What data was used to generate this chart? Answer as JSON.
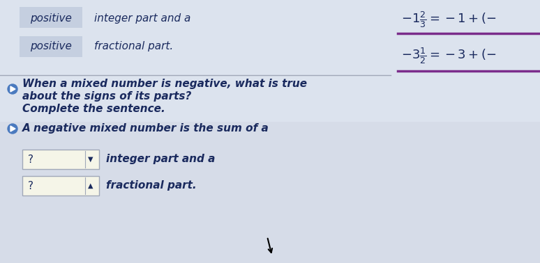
{
  "bg_color": "#d6dce8",
  "panel_bg": "#dce3ee",
  "white_box_color": "#ffffff",
  "light_blue_box_color": "#c5cfe0",
  "dropdown_bg": "#f5f5e8",
  "divider_color": "#a0a8b8",
  "purple_underline": "#7b2d8b",
  "text_color_dark": "#1a2a5e",
  "text_color_medium": "#2a3a6e",
  "speaker_icon_color": "#4a7abf",
  "row1_label": "positive",
  "row1_text": "integer part and a",
  "row2_label": "positive",
  "row2_text": "fractional part.",
  "question_line1": "When a mixed number is negative, what is true",
  "question_line2": "about the signs of its parts?",
  "instruction": "Complete the sentence.",
  "sentence_intro": "A negative mixed number is the sum of a",
  "dropdown1_label": "?",
  "dropdown1_suffix": "integer part and a",
  "dropdown2_label": "?",
  "dropdown2_suffix": "fractional part.",
  "eq1_text": "$-1\\dfrac{2}{3} = -1 + \\left(-\\right.$",
  "eq2_text": "$-3\\dfrac{1}{2} = -3 + \\left(-\\right.$",
  "font_size_main": 12,
  "font_size_eq": 13
}
